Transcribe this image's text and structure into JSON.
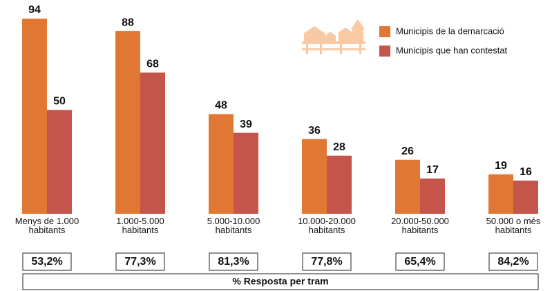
{
  "chart_data": {
    "type": "bar",
    "categories": [
      "Menys de 1.000 habitants",
      "1.000-5.000 habitants",
      "5.000-10.000 habitants",
      "10.000-20.000 habitants",
      "20.000-50.000 habitants",
      "50.000 o més habitants"
    ],
    "series": [
      {
        "name": "Municipis de la demarcació",
        "color": "#e07834",
        "values": [
          94,
          88,
          48,
          36,
          26,
          19
        ]
      },
      {
        "name": "Municipis que han contestat",
        "color": "#c5554a",
        "values": [
          50,
          68,
          39,
          28,
          17,
          16
        ]
      }
    ],
    "response_rates": {
      "values": [
        53.2,
        77.3,
        81.3,
        77.8,
        65.4,
        84.2
      ],
      "value_labels": [
        "53,2%",
        "77,3%",
        "81,3%",
        "77,8%",
        "65,4%",
        "84,2%"
      ]
    },
    "footer": "% Resposta per tram"
  }
}
